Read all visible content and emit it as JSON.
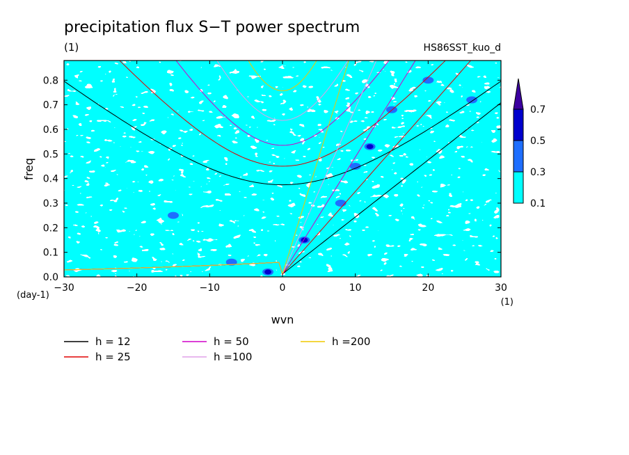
{
  "chart_data": {
    "type": "heatmap",
    "title": "precipitation flux S−T power spectrum",
    "units": "(1)",
    "run_name": "HS86SST_kuo_d",
    "xlabel": "wvn",
    "ylabel": "freq",
    "x_units": "(1)",
    "y_units": "(day-1)",
    "xlim": [
      -30,
      30
    ],
    "ylim": [
      0,
      0.88
    ],
    "x_ticks": [
      -30,
      -20,
      -10,
      0,
      10,
      20,
      30
    ],
    "x_tick_labels": [
      "−30",
      "−20",
      "−10",
      "0",
      "10",
      "20",
      "30"
    ],
    "y_ticks": [
      0.0,
      0.1,
      0.2,
      0.3,
      0.4,
      0.5,
      0.6,
      0.7,
      0.8
    ],
    "y_tick_labels": [
      "0.0",
      "0.1",
      "0.2",
      "0.3",
      "0.4",
      "0.5",
      "0.6",
      "0.7",
      "0.8"
    ],
    "colorbar": {
      "levels": [
        0.1,
        0.3,
        0.5,
        0.7
      ],
      "labels": [
        "0.1",
        "0.3",
        "0.5",
        "0.7"
      ],
      "colors": [
        "#00ffff",
        "#1e6eff",
        "#0000cd",
        "#3c00a0"
      ]
    },
    "dispersion_curves": [
      {
        "name": "h = 12",
        "h": 12,
        "color": "#000000"
      },
      {
        "name": "h = 25",
        "h": 25,
        "color": "#e00000"
      },
      {
        "name": "h = 50",
        "h": 50,
        "color": "#d000c8"
      },
      {
        "name": "h =100",
        "h": 100,
        "color": "#e0a0e8"
      },
      {
        "name": "h =200",
        "h": 200,
        "color": "#f0c800"
      }
    ],
    "contour_features": [
      {
        "wvn": -2,
        "freq": 0.02,
        "level": 0.7
      },
      {
        "wvn": 3,
        "freq": 0.15,
        "level": 0.7
      },
      {
        "wvn": 10,
        "freq": 0.45,
        "level": 0.5
      },
      {
        "wvn": 12,
        "freq": 0.53,
        "level": 0.7
      },
      {
        "wvn": 15,
        "freq": 0.68,
        "level": 0.5
      },
      {
        "wvn": 20,
        "freq": 0.8,
        "level": 0.5
      },
      {
        "wvn": -15,
        "freq": 0.25,
        "level": 0.5
      },
      {
        "wvn": 8,
        "freq": 0.3,
        "level": 0.5
      },
      {
        "wvn": -7,
        "freq": 0.06,
        "level": 0.5
      },
      {
        "wvn": 26,
        "freq": 0.72,
        "level": 0.5
      }
    ]
  }
}
